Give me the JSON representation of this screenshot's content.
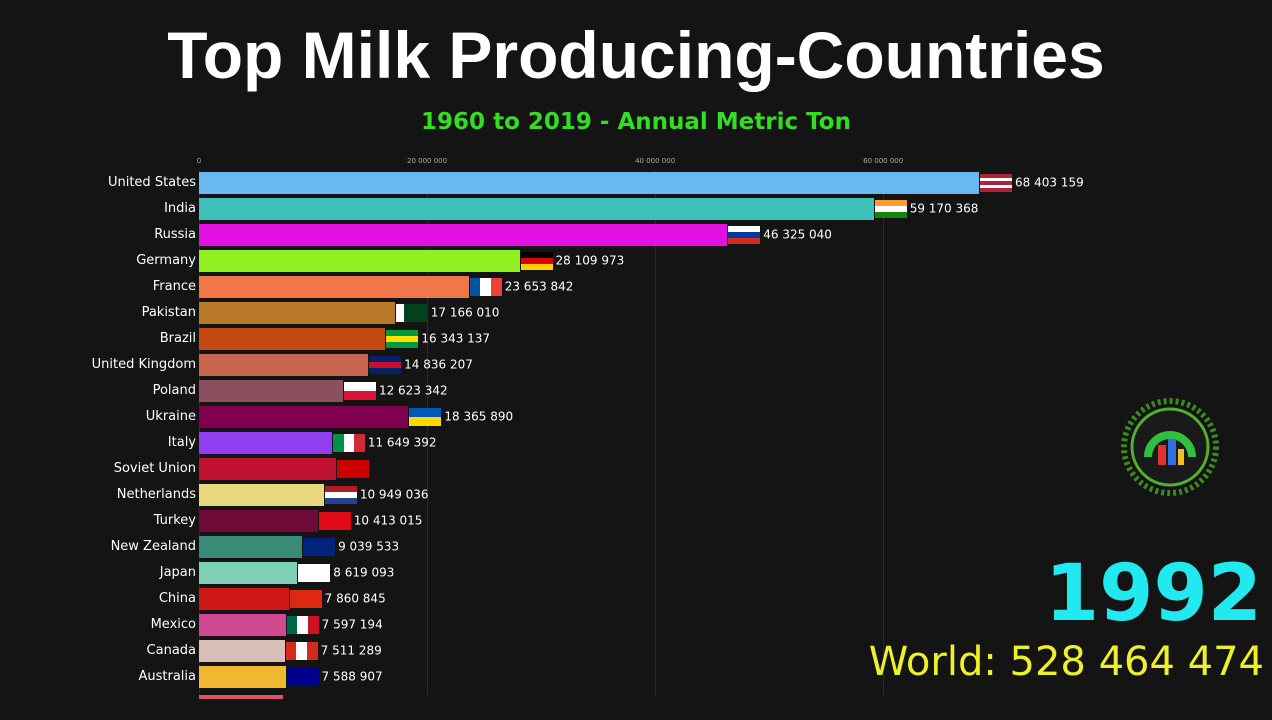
{
  "chart_data": {
    "type": "bar",
    "title": "Top Milk Producing-Countries",
    "subtitle": "1960 to 2019 - Annual Metric Ton",
    "xlim": [
      0,
      68403159
    ],
    "x_ticks": [
      "0",
      "20 000 000",
      "40 000 000",
      "60 000 000"
    ],
    "x_tick_values": [
      0,
      20000000,
      40000000,
      60000000
    ],
    "grid": true,
    "categories": [
      "United States",
      "India",
      "Russia",
      "Germany",
      "France",
      "Pakistan",
      "Brazil",
      "United Kingdom",
      "Poland",
      "Ukraine",
      "Italy",
      "Soviet Union",
      "Netherlands",
      "Turkey",
      "New Zealand",
      "Japan",
      "China",
      "Mexico",
      "Canada",
      "Australia"
    ],
    "values": [
      68403159,
      59170368,
      46325040,
      28109973,
      23653842,
      17166010,
      16343137,
      14836207,
      12623342,
      18365890,
      11649392,
      12000000,
      10949036,
      10413015,
      9039533,
      8619093,
      7860845,
      7597194,
      7511289,
      7588907
    ],
    "value_labels": [
      "68 403 159",
      "59 170 368",
      "46 325 040",
      "28 109 973",
      "23 653 842",
      "17 166 010",
      "16 343 137",
      "14 836 207",
      "12 623 342",
      "18 365 890",
      "11 649 392",
      "",
      "10 949 036",
      "10 413 015",
      "9 039 533",
      "8 619 093",
      "7 860 845",
      "7 597 194",
      "7 511 289",
      "7 588 907"
    ],
    "colors": [
      "#6ab8f0",
      "#3cc0b8",
      "#e010e0",
      "#90f020",
      "#f07848",
      "#b87a28",
      "#c44a10",
      "#c86650",
      "#8a5060",
      "#800050",
      "#9040f0",
      "#c01030",
      "#e8d880",
      "#700838",
      "#3a8a78",
      "#80d0b8",
      "#d01818",
      "#d04890",
      "#d8c0b8",
      "#f0b830"
    ]
  },
  "year": "1992",
  "world_total": "World: 528 464 474"
}
